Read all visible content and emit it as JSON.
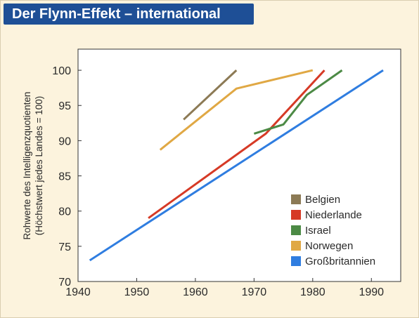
{
  "title": "Der Flynn-Effekt – international",
  "chart_data": {
    "type": "line",
    "ylabel_line1": "Rohwerte des Intelligenzquotienten",
    "ylabel_line2": "(Höchstwert jedes Landes = 100)",
    "xlim": [
      1940,
      1995
    ],
    "ylim": [
      70,
      103
    ],
    "x_ticks": [
      1940,
      1950,
      1960,
      1970,
      1980,
      1990
    ],
    "y_ticks": [
      70,
      75,
      80,
      85,
      90,
      95,
      100
    ],
    "grid": false,
    "legend_position": "bottom-right",
    "series": [
      {
        "name": "Belgien",
        "color": "#8c7a55",
        "points": [
          [
            1958,
            93
          ],
          [
            1967,
            100
          ]
        ]
      },
      {
        "name": "Niederlande",
        "color": "#d63a26",
        "points": [
          [
            1952,
            79
          ],
          [
            1972,
            91
          ],
          [
            1982,
            100
          ]
        ]
      },
      {
        "name": "Israel",
        "color": "#4c8a45",
        "points": [
          [
            1970,
            91
          ],
          [
            1975,
            92.3
          ],
          [
            1979,
            96.5
          ],
          [
            1985,
            100
          ]
        ]
      },
      {
        "name": "Norwegen",
        "color": "#e0a844",
        "points": [
          [
            1954,
            88.7
          ],
          [
            1967,
            97.4
          ],
          [
            1980,
            100
          ]
        ]
      },
      {
        "name": "Großbritannien",
        "color": "#2f7de0",
        "points": [
          [
            1942,
            73
          ],
          [
            1992,
            100
          ]
        ]
      }
    ]
  }
}
